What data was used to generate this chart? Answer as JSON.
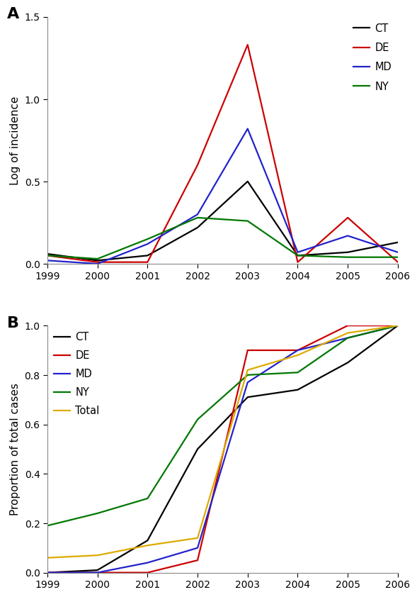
{
  "years": [
    1999,
    2000,
    2001,
    2002,
    2003,
    2004,
    2005,
    2006
  ],
  "panel_A": {
    "CT": [
      0.06,
      0.02,
      0.05,
      0.22,
      0.5,
      0.05,
      0.07,
      0.13
    ],
    "DE": [
      0.05,
      0.01,
      0.01,
      0.6,
      1.33,
      0.01,
      0.28,
      0.01
    ],
    "MD": [
      0.02,
      0.0,
      0.12,
      0.3,
      0.82,
      0.07,
      0.17,
      0.07
    ],
    "NY": [
      0.05,
      0.03,
      0.15,
      0.28,
      0.26,
      0.05,
      0.04,
      0.04
    ]
  },
  "panel_B": {
    "CT": [
      0.0,
      0.01,
      0.13,
      0.5,
      0.71,
      0.74,
      0.85,
      1.0
    ],
    "DE": [
      0.0,
      0.0,
      0.0,
      0.05,
      0.9,
      0.9,
      1.0,
      1.0
    ],
    "MD": [
      0.0,
      0.0,
      0.04,
      0.1,
      0.77,
      0.9,
      0.95,
      1.0
    ],
    "NY": [
      0.19,
      0.24,
      0.3,
      0.62,
      0.8,
      0.81,
      0.95,
      1.0
    ],
    "Total": [
      0.06,
      0.07,
      0.11,
      0.14,
      0.82,
      0.88,
      0.97,
      1.0
    ]
  },
  "colors": {
    "CT": "#000000",
    "DE": "#cc0000",
    "MD": "#2222cc",
    "NY": "#007700",
    "Total": "#ddaa00"
  },
  "panel_A_ylabel": "Log of incidence",
  "panel_B_ylabel": "Proportion of total cases",
  "panel_A_ylim": [
    0,
    1.5
  ],
  "panel_B_ylim": [
    0,
    1.0
  ],
  "panel_A_yticks": [
    0.0,
    0.5,
    1.0,
    1.5
  ],
  "panel_B_yticks": [
    0.0,
    0.2,
    0.4,
    0.6,
    0.8,
    1.0
  ],
  "label_A": "A",
  "label_B": "B",
  "linewidth": 1.6
}
